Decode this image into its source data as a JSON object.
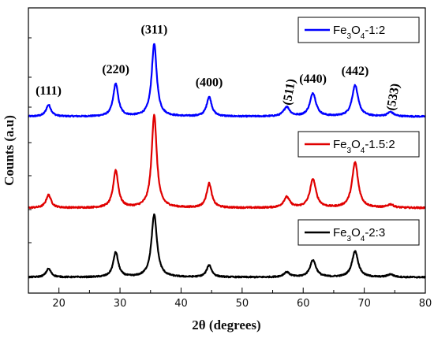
{
  "chart_data": {
    "type": "line",
    "xlabel": "2θ (degrees)",
    "ylabel": "Counts (a.u)",
    "xlim": [
      15,
      80
    ],
    "x_ticks": [
      20,
      30,
      40,
      50,
      60,
      70,
      80
    ],
    "x_tick_labels": [
      "20",
      "30",
      "40",
      "50",
      "60",
      "70",
      "80"
    ],
    "y_tick_labels_shown": false,
    "grid": false,
    "legend_placement": "right, one box beside each curve",
    "series": [
      {
        "name": "Fe3O4-1:2",
        "legend": {
          "pre": "Fe",
          "sub1": "3",
          "mid": "O",
          "sub2": "4",
          "post": "-1:2"
        },
        "color": "#0000ff",
        "baseline": 0.0,
        "peaks": [
          {
            "x": 18.3,
            "h": 0.16,
            "w": 0.5
          },
          {
            "x": 29.3,
            "h": 0.45,
            "w": 0.5
          },
          {
            "x": 35.6,
            "h": 1.0,
            "w": 0.5
          },
          {
            "x": 44.6,
            "h": 0.27,
            "w": 0.5
          },
          {
            "x": 57.3,
            "h": 0.13,
            "w": 0.6
          },
          {
            "x": 61.6,
            "h": 0.32,
            "w": 0.6
          },
          {
            "x": 68.5,
            "h": 0.43,
            "w": 0.6
          },
          {
            "x": 74.3,
            "h": 0.06,
            "w": 0.6
          }
        ]
      },
      {
        "name": "Fe3O4-1.5:2",
        "legend": {
          "pre": "Fe",
          "sub1": "3",
          "mid": "O",
          "sub2": "4",
          "post": "-1.5:2"
        },
        "color": "#e00000",
        "baseline": 0.0,
        "peaks": [
          {
            "x": 18.3,
            "h": 0.16,
            "w": 0.5
          },
          {
            "x": 29.3,
            "h": 0.46,
            "w": 0.5
          },
          {
            "x": 35.6,
            "h": 1.15,
            "w": 0.5
          },
          {
            "x": 44.6,
            "h": 0.3,
            "w": 0.5
          },
          {
            "x": 57.3,
            "h": 0.13,
            "w": 0.6
          },
          {
            "x": 61.6,
            "h": 0.35,
            "w": 0.6
          },
          {
            "x": 68.5,
            "h": 0.56,
            "w": 0.6
          },
          {
            "x": 74.3,
            "h": 0.04,
            "w": 0.6
          }
        ]
      },
      {
        "name": "Fe3O4-2:3",
        "legend": {
          "pre": "Fe",
          "sub1": "3",
          "mid": "O",
          "sub2": "4",
          "post": "-2:3"
        },
        "color": "#000000",
        "baseline": 0.0,
        "peaks": [
          {
            "x": 18.3,
            "h": 0.12,
            "w": 0.5
          },
          {
            "x": 29.3,
            "h": 0.35,
            "w": 0.5
          },
          {
            "x": 35.6,
            "h": 0.88,
            "w": 0.55
          },
          {
            "x": 44.6,
            "h": 0.17,
            "w": 0.5
          },
          {
            "x": 57.3,
            "h": 0.07,
            "w": 0.6
          },
          {
            "x": 61.6,
            "h": 0.24,
            "w": 0.6
          },
          {
            "x": 68.5,
            "h": 0.37,
            "w": 0.6
          },
          {
            "x": 74.3,
            "h": 0.04,
            "w": 0.6
          }
        ]
      }
    ],
    "annotations": [
      {
        "text": "(111)",
        "x": 18.3,
        "series": 0
      },
      {
        "text": "(220)",
        "x": 29.3,
        "series": 0
      },
      {
        "text": "(311)",
        "x": 35.6,
        "series": 0
      },
      {
        "text": "(400)",
        "x": 44.6,
        "series": 0
      },
      {
        "text": "(511)",
        "x": 57.3,
        "series": 0
      },
      {
        "text": "(440)",
        "x": 61.6,
        "series": 0
      },
      {
        "text": "(442)",
        "x": 68.5,
        "series": 0
      },
      {
        "text": "(533)",
        "x": 74.3,
        "series": 0
      }
    ]
  }
}
